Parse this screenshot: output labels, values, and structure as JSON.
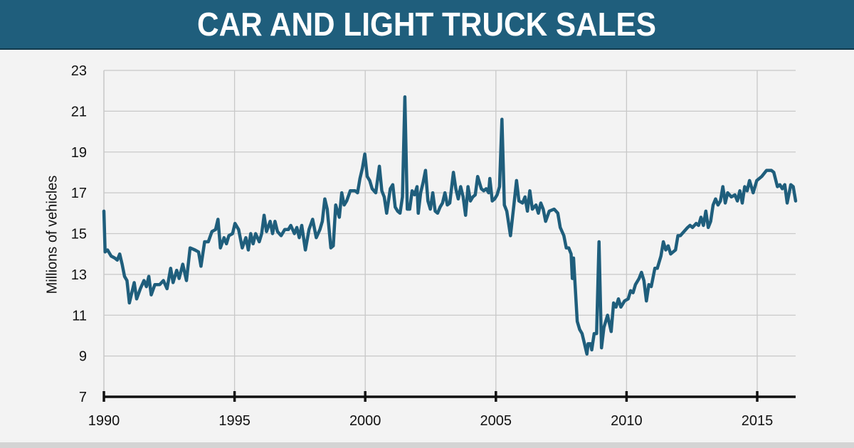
{
  "header": {
    "title": "CAR AND LIGHT TRUCK SALES"
  },
  "colors": {
    "header_bg": "#1f5e7c",
    "line": "#1f5e7c",
    "grid": "#c8c8c8",
    "axis": "#111111",
    "background": "#f3f3f3"
  },
  "chart_data": {
    "type": "line",
    "title": "CAR AND LIGHT TRUCK SALES",
    "xlabel": "",
    "ylabel": "Millions of vehicles",
    "xlim": [
      1990,
      2016.5
    ],
    "ylim": [
      7,
      23
    ],
    "x_ticks": [
      1990,
      1995,
      2000,
      2005,
      2010,
      2015
    ],
    "y_ticks": [
      7,
      9,
      11,
      13,
      15,
      17,
      19,
      21,
      23
    ],
    "grid": true,
    "legend": null,
    "series": [
      {
        "name": "Car and light truck sales",
        "points": [
          [
            1990.0,
            16.1
          ],
          [
            1990.05,
            14.1
          ],
          [
            1990.15,
            14.2
          ],
          [
            1990.3,
            13.9
          ],
          [
            1990.45,
            13.8
          ],
          [
            1990.55,
            13.7
          ],
          [
            1990.65,
            14.0
          ],
          [
            1990.75,
            13.5
          ],
          [
            1990.85,
            12.9
          ],
          [
            1990.95,
            12.7
          ],
          [
            1991.05,
            11.6
          ],
          [
            1991.15,
            12.1
          ],
          [
            1991.25,
            12.6
          ],
          [
            1991.35,
            11.8
          ],
          [
            1991.5,
            12.3
          ],
          [
            1991.65,
            12.7
          ],
          [
            1991.75,
            12.4
          ],
          [
            1991.85,
            12.9
          ],
          [
            1991.95,
            12.0
          ],
          [
            1992.1,
            12.5
          ],
          [
            1992.3,
            12.5
          ],
          [
            1992.45,
            12.7
          ],
          [
            1992.6,
            12.3
          ],
          [
            1992.75,
            13.3
          ],
          [
            1992.85,
            12.6
          ],
          [
            1993.0,
            13.2
          ],
          [
            1993.1,
            12.8
          ],
          [
            1993.25,
            13.5
          ],
          [
            1993.4,
            12.7
          ],
          [
            1993.55,
            14.3
          ],
          [
            1993.75,
            14.2
          ],
          [
            1993.9,
            14.1
          ],
          [
            1994.0,
            13.4
          ],
          [
            1994.15,
            14.6
          ],
          [
            1994.3,
            14.6
          ],
          [
            1994.45,
            15.1
          ],
          [
            1994.6,
            15.2
          ],
          [
            1994.7,
            15.7
          ],
          [
            1994.8,
            14.3
          ],
          [
            1994.95,
            14.8
          ],
          [
            1995.05,
            14.5
          ],
          [
            1995.15,
            14.9
          ],
          [
            1995.3,
            15.0
          ],
          [
            1995.4,
            15.5
          ],
          [
            1995.55,
            15.2
          ],
          [
            1995.7,
            14.3
          ],
          [
            1995.85,
            14.8
          ],
          [
            1995.95,
            14.2
          ],
          [
            1996.05,
            15.0
          ],
          [
            1996.15,
            14.5
          ],
          [
            1996.25,
            15.0
          ],
          [
            1996.4,
            14.6
          ],
          [
            1996.5,
            15.0
          ],
          [
            1996.6,
            15.9
          ],
          [
            1996.7,
            15.1
          ],
          [
            1996.85,
            15.6
          ],
          [
            1996.95,
            15.0
          ],
          [
            1997.05,
            15.6
          ],
          [
            1997.15,
            15.1
          ],
          [
            1997.3,
            14.9
          ],
          [
            1997.45,
            15.2
          ],
          [
            1997.6,
            15.2
          ],
          [
            1997.7,
            15.4
          ],
          [
            1997.85,
            15.0
          ],
          [
            1997.95,
            15.3
          ],
          [
            1998.05,
            14.8
          ],
          [
            1998.15,
            15.4
          ],
          [
            1998.3,
            14.2
          ],
          [
            1998.45,
            15.2
          ],
          [
            1998.6,
            15.7
          ],
          [
            1998.75,
            14.8
          ],
          [
            1998.9,
            15.2
          ],
          [
            1999.0,
            15.6
          ],
          [
            1999.1,
            16.7
          ],
          [
            1999.2,
            16.2
          ],
          [
            1999.35,
            14.3
          ],
          [
            1999.45,
            14.4
          ],
          [
            1999.55,
            16.4
          ],
          [
            1999.7,
            15.8
          ],
          [
            1999.8,
            17.0
          ],
          [
            1999.9,
            16.4
          ],
          [
            2000.0,
            16.6
          ],
          [
            2000.15,
            17.1
          ],
          [
            2000.35,
            17.1
          ],
          [
            2000.45,
            17.0
          ],
          [
            2000.55,
            17.7
          ],
          [
            2000.65,
            18.2
          ],
          [
            2000.75,
            18.9
          ],
          [
            2000.85,
            17.8
          ],
          [
            2000.95,
            17.6
          ],
          [
            2001.05,
            17.2
          ],
          [
            2001.2,
            17.0
          ],
          [
            2001.35,
            18.3
          ],
          [
            2001.45,
            17.1
          ],
          [
            2001.55,
            16.8
          ],
          [
            2001.65,
            16.0
          ],
          [
            2001.8,
            17.2
          ],
          [
            2001.9,
            17.4
          ],
          [
            2002.0,
            16.3
          ],
          [
            2002.1,
            16.1
          ],
          [
            2002.2,
            16.0
          ],
          [
            2002.3,
            16.8
          ],
          [
            2002.4,
            21.7
          ],
          [
            2002.5,
            16.2
          ],
          [
            2002.6,
            16.2
          ],
          [
            2002.7,
            17.1
          ],
          [
            2002.8,
            16.9
          ],
          [
            2002.9,
            17.3
          ],
          [
            2002.95,
            16.0
          ],
          [
            2003.05,
            17.0
          ],
          [
            2003.15,
            17.5
          ],
          [
            2003.25,
            18.1
          ],
          [
            2003.35,
            16.6
          ],
          [
            2003.45,
            16.2
          ],
          [
            2003.55,
            17.0
          ],
          [
            2003.65,
            16.1
          ],
          [
            2003.75,
            16.0
          ],
          [
            2003.85,
            16.3
          ],
          [
            2003.95,
            16.5
          ],
          [
            2004.05,
            17.0
          ],
          [
            2004.15,
            16.4
          ],
          [
            2004.25,
            16.5
          ],
          [
            2004.4,
            18.0
          ],
          [
            2004.5,
            17.2
          ],
          [
            2004.6,
            16.7
          ],
          [
            2004.7,
            17.3
          ],
          [
            2004.8,
            16.8
          ],
          [
            2004.9,
            15.9
          ],
          [
            2005.0,
            17.3
          ],
          [
            2005.1,
            16.6
          ],
          [
            2005.2,
            16.8
          ],
          [
            2005.3,
            16.9
          ],
          [
            2005.4,
            17.8
          ],
          [
            2005.55,
            17.2
          ],
          [
            2005.65,
            17.1
          ],
          [
            2005.75,
            17.2
          ],
          [
            2005.85,
            17.0
          ],
          [
            2005.9,
            17.7
          ],
          [
            2006.0,
            16.6
          ],
          [
            2006.1,
            16.7
          ],
          [
            2006.2,
            16.9
          ],
          [
            2006.3,
            17.3
          ],
          [
            2006.4,
            20.6
          ],
          [
            2006.5,
            16.4
          ],
          [
            2006.6,
            16.1
          ],
          [
            2006.75,
            14.9
          ],
          [
            2006.9,
            16.5
          ],
          [
            2007.0,
            17.6
          ],
          [
            2007.1,
            16.6
          ],
          [
            2007.25,
            16.5
          ],
          [
            2007.35,
            16.8
          ],
          [
            2007.45,
            16.1
          ],
          [
            2007.55,
            17.1
          ],
          [
            2007.65,
            16.2
          ],
          [
            2007.8,
            16.4
          ],
          [
            2007.9,
            16.0
          ],
          [
            2008.0,
            16.5
          ],
          [
            2008.1,
            16.2
          ],
          [
            2008.2,
            15.6
          ],
          [
            2008.35,
            16.1
          ],
          [
            2008.55,
            16.2
          ],
          [
            2008.7,
            16.0
          ],
          [
            2008.8,
            15.3
          ],
          [
            2008.95,
            14.9
          ],
          [
            2009.05,
            14.3
          ],
          [
            2009.15,
            14.3
          ],
          [
            2009.25,
            14.0
          ],
          [
            2009.3,
            12.8
          ],
          [
            2009.35,
            13.8
          ],
          [
            2009.5,
            10.7
          ],
          [
            2009.6,
            10.3
          ],
          [
            2009.7,
            10.1
          ],
          [
            2009.8,
            9.6
          ],
          [
            2009.9,
            9.1
          ],
          [
            2009.95,
            9.6
          ],
          [
            2010.05,
            9.6
          ],
          [
            2010.1,
            9.3
          ],
          [
            2010.2,
            10.1
          ],
          [
            2010.3,
            10.1
          ],
          [
            2010.4,
            14.6
          ],
          [
            2010.5,
            9.4
          ],
          [
            2010.6,
            10.4
          ],
          [
            2010.75,
            11.0
          ],
          [
            2010.9,
            10.2
          ],
          [
            2011.0,
            11.6
          ],
          [
            2011.1,
            11.4
          ],
          [
            2011.2,
            11.8
          ],
          [
            2011.3,
            11.4
          ],
          [
            2011.45,
            11.7
          ],
          [
            2011.6,
            11.8
          ],
          [
            2011.7,
            12.2
          ],
          [
            2011.8,
            12.1
          ],
          [
            2011.9,
            12.5
          ],
          [
            2012.05,
            12.8
          ],
          [
            2012.15,
            13.1
          ],
          [
            2012.25,
            12.7
          ],
          [
            2012.35,
            11.7
          ],
          [
            2012.45,
            12.5
          ],
          [
            2012.55,
            12.4
          ],
          [
            2012.7,
            13.3
          ],
          [
            2012.8,
            13.3
          ],
          [
            2012.95,
            13.9
          ],
          [
            2013.05,
            14.6
          ],
          [
            2013.15,
            14.2
          ],
          [
            2013.25,
            14.4
          ],
          [
            2013.35,
            14.0
          ],
          [
            2013.45,
            14.1
          ],
          [
            2013.55,
            14.2
          ],
          [
            2013.65,
            14.9
          ],
          [
            2013.75,
            14.9
          ],
          [
            2013.9,
            15.1
          ],
          [
            2014.05,
            15.3
          ],
          [
            2014.15,
            15.4
          ],
          [
            2014.25,
            15.3
          ],
          [
            2014.4,
            15.5
          ],
          [
            2014.5,
            15.4
          ],
          [
            2014.6,
            15.8
          ],
          [
            2014.7,
            15.4
          ],
          [
            2014.8,
            16.1
          ],
          [
            2014.9,
            15.3
          ],
          [
            2015.0,
            15.6
          ],
          [
            2015.1,
            16.4
          ],
          [
            2015.2,
            16.7
          ],
          [
            2015.3,
            16.4
          ],
          [
            2015.4,
            16.6
          ],
          [
            2015.5,
            17.3
          ],
          [
            2015.6,
            16.5
          ],
          [
            2015.7,
            17.0
          ],
          [
            2015.85,
            16.8
          ],
          [
            2016.0,
            16.9
          ],
          [
            2016.1,
            16.6
          ],
          [
            2016.2,
            17.1
          ],
          [
            2016.3,
            16.5
          ],
          [
            2016.4,
            17.3
          ],
          [
            2016.5,
            17.1
          ],
          [
            2016.6,
            17.6
          ],
          [
            2016.75,
            17.0
          ],
          [
            2016.9,
            17.6
          ],
          [
            2017.1,
            17.8
          ],
          [
            2017.3,
            18.1
          ],
          [
            2017.5,
            18.1
          ],
          [
            2017.6,
            18.0
          ],
          [
            2017.75,
            17.3
          ],
          [
            2017.85,
            17.4
          ],
          [
            2017.95,
            17.2
          ],
          [
            2018.05,
            17.4
          ],
          [
            2018.15,
            16.5
          ],
          [
            2018.3,
            17.4
          ],
          [
            2018.4,
            17.3
          ],
          [
            2018.5,
            16.6
          ]
        ]
      }
    ]
  }
}
